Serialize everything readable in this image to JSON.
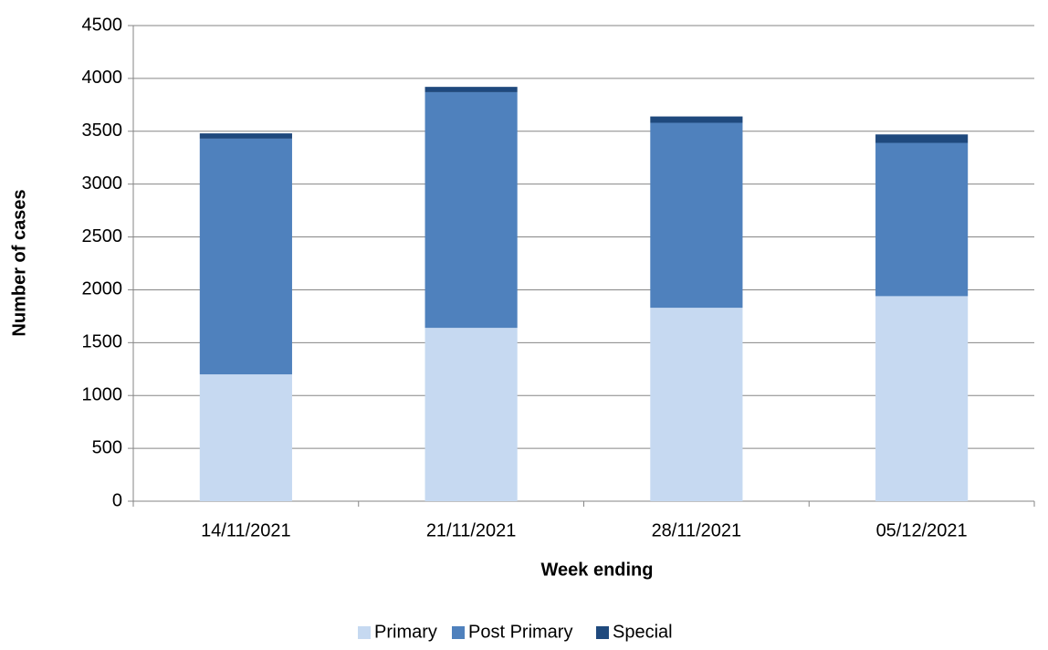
{
  "chart_data": {
    "type": "stacked-bar",
    "x_label": "Week ending",
    "y_label": "Number of cases",
    "categories": [
      "14/11/2021",
      "21/11/2021",
      "28/11/2021",
      "05/12/2021"
    ],
    "series": [
      {
        "name": "Primary",
        "color": "#c6d9f1",
        "values": [
          1200,
          1640,
          1830,
          1940
        ]
      },
      {
        "name": "Post Primary",
        "color": "#4f81bd",
        "values": [
          2230,
          2230,
          1750,
          1450
        ]
      },
      {
        "name": "Special",
        "color": "#1f497d",
        "values": [
          50,
          50,
          60,
          80
        ]
      }
    ],
    "ylim": [
      0,
      4500
    ],
    "yticks": [
      0,
      500,
      1000,
      1500,
      2000,
      2500,
      3000,
      3500,
      4000,
      4500
    ],
    "grid": true,
    "legend": "bottom"
  }
}
